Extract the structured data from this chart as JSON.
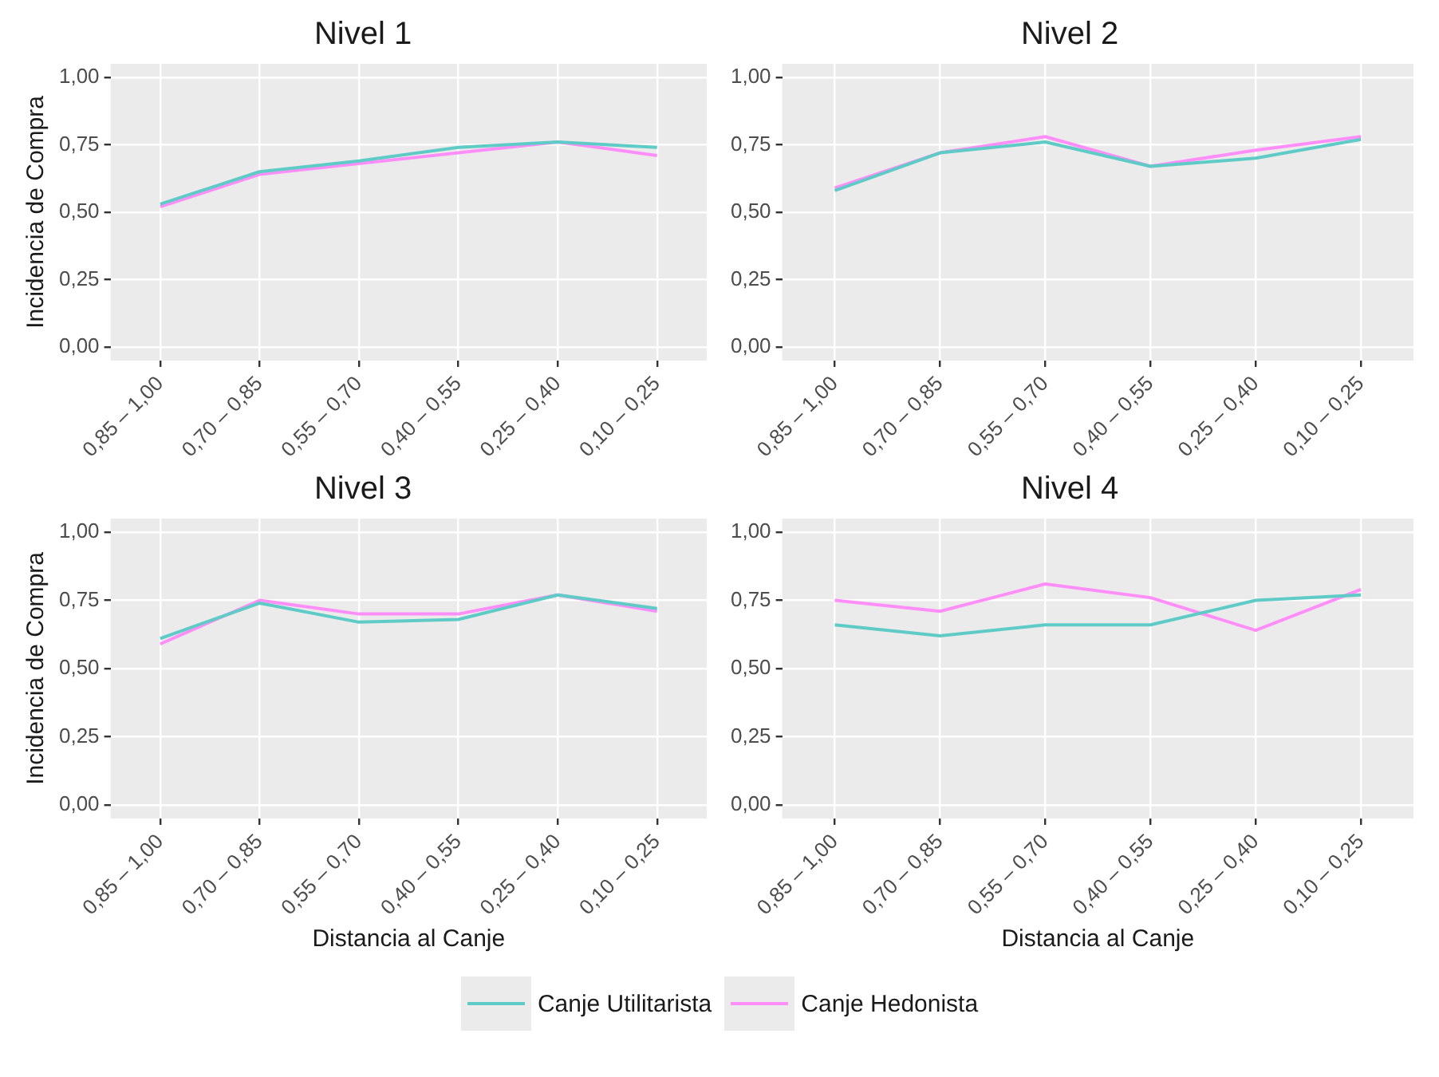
{
  "chart_data": [
    {
      "type": "line",
      "title": "Nivel 1",
      "ylabel": "Incidencia de Compra",
      "categories": [
        "0,85 – 1,00",
        "0,70 – 0,85",
        "0,55 – 0,70",
        "0,40 – 0,55",
        "0,25 – 0,40",
        "0,10 – 0,25"
      ],
      "ylim": [
        -0.05,
        1.05
      ],
      "yticks": [
        {
          "value": 0,
          "label": "0,00"
        },
        {
          "value": 0.25,
          "label": "0,25"
        },
        {
          "value": 0.5,
          "label": "0,50"
        },
        {
          "value": 0.75,
          "label": "0,75"
        },
        {
          "value": 1,
          "label": "1,00"
        }
      ],
      "grid": true,
      "marker": "none",
      "series": [
        {
          "color": "#5fcbc6",
          "values": [
            0.53,
            0.65,
            0.69,
            0.74,
            0.76,
            0.74
          ]
        },
        {
          "color": "#ff8ef8",
          "values": [
            0.52,
            0.64,
            0.68,
            0.72,
            0.76,
            0.71
          ]
        }
      ]
    },
    {
      "type": "line",
      "title": "Nivel 2",
      "categories": [
        "0,85 – 1,00",
        "0,70 – 0,85",
        "0,55 – 0,70",
        "0,40 – 0,55",
        "0,25 – 0,40",
        "0,10 – 0,25"
      ],
      "ylim": [
        -0.05,
        1.05
      ],
      "yticks": [
        {
          "value": 0,
          "label": "0,00"
        },
        {
          "value": 0.25,
          "label": "0,25"
        },
        {
          "value": 0.5,
          "label": "0,50"
        },
        {
          "value": 0.75,
          "label": "0,75"
        },
        {
          "value": 1,
          "label": "1,00"
        }
      ],
      "grid": true,
      "marker": "none",
      "series": [
        {
          "color": "#5fcbc6",
          "values": [
            0.58,
            0.72,
            0.76,
            0.67,
            0.7,
            0.77
          ]
        },
        {
          "color": "#ff8ef8",
          "values": [
            0.59,
            0.72,
            0.78,
            0.67,
            0.73,
            0.78
          ]
        }
      ]
    },
    {
      "type": "line",
      "title": "Nivel 3",
      "xlabel": "Distancia al Canje",
      "ylabel": "Incidencia de Compra",
      "categories": [
        "0,85 – 1,00",
        "0,70 – 0,85",
        "0,55 – 0,70",
        "0,40 – 0,55",
        "0,25 – 0,40",
        "0,10 – 0,25"
      ],
      "ylim": [
        -0.05,
        1.05
      ],
      "yticks": [
        {
          "value": 0,
          "label": "0,00"
        },
        {
          "value": 0.25,
          "label": "0,25"
        },
        {
          "value": 0.5,
          "label": "0,50"
        },
        {
          "value": 0.75,
          "label": "0,75"
        },
        {
          "value": 1,
          "label": "1,00"
        }
      ],
      "grid": true,
      "marker": "none",
      "series": [
        {
          "color": "#5fcbc6",
          "values": [
            0.61,
            0.74,
            0.67,
            0.68,
            0.77,
            0.72
          ]
        },
        {
          "color": "#ff8ef8",
          "values": [
            0.59,
            0.75,
            0.7,
            0.7,
            0.77,
            0.71
          ]
        }
      ]
    },
    {
      "type": "line",
      "title": "Nivel 4",
      "xlabel": "Distancia al Canje",
      "categories": [
        "0,85 – 1,00",
        "0,70 – 0,85",
        "0,55 – 0,70",
        "0,40 – 0,55",
        "0,25 – 0,40",
        "0,10 – 0,25"
      ],
      "ylim": [
        -0.05,
        1.05
      ],
      "yticks": [
        {
          "value": 0,
          "label": "0,00"
        },
        {
          "value": 0.25,
          "label": "0,25"
        },
        {
          "value": 0.5,
          "label": "0,50"
        },
        {
          "value": 0.75,
          "label": "0,75"
        },
        {
          "value": 1,
          "label": "1,00"
        }
      ],
      "grid": true,
      "legend": "bottom",
      "marker": "none",
      "series": [
        {
          "name": "Canje Utilitarista",
          "color": "#5fcbc6",
          "values": [
            0.66,
            0.62,
            0.66,
            0.66,
            0.75,
            0.77
          ]
        },
        {
          "name": "Canje Hedonista",
          "color": "#ff8ef8",
          "values": [
            0.75,
            0.71,
            0.81,
            0.76,
            0.64,
            0.79
          ]
        }
      ]
    }
  ]
}
